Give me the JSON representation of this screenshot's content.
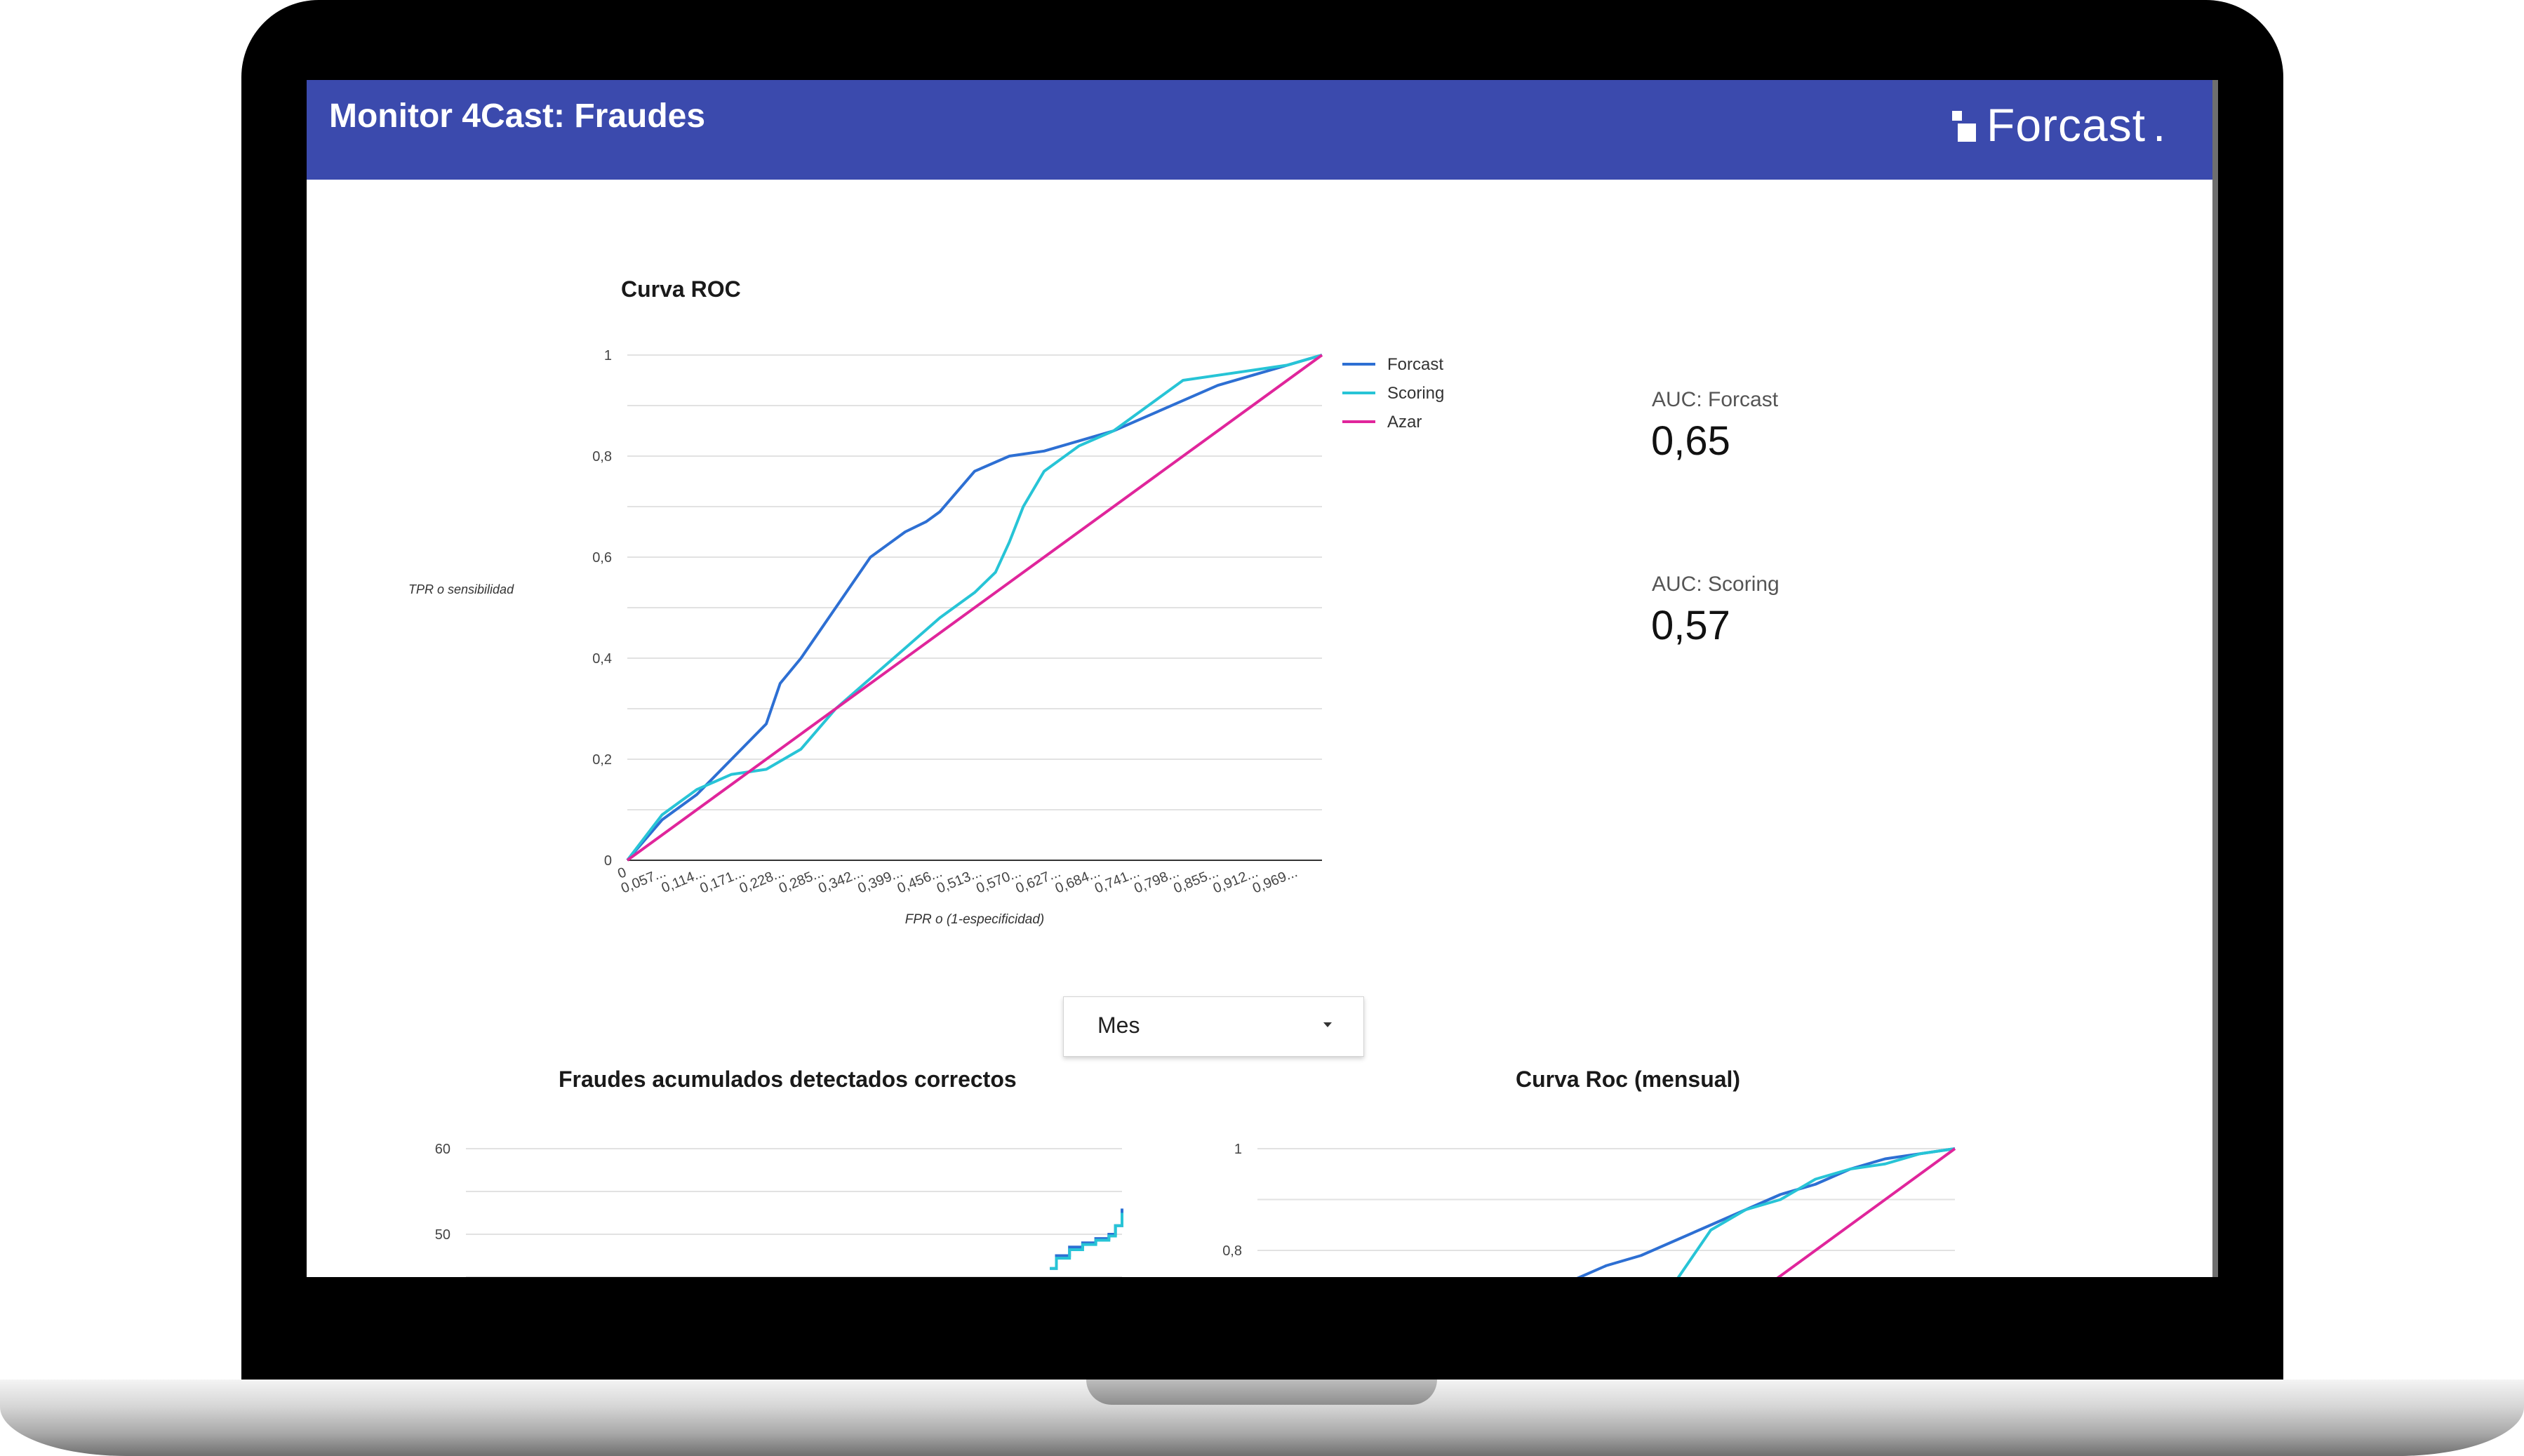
{
  "app": {
    "title": "Monitor 4Cast: Fraudes",
    "brand_name": "Forcast",
    "brand_dot": ".",
    "header_color": "#3b4aad"
  },
  "roc_main": {
    "title": "Curva ROC",
    "ylabel": "TPR o sensibilidad",
    "xlabel": "FPR o (1-especificidad)"
  },
  "kpis": [
    {
      "label": "AUC: Forcast",
      "value": "0,65"
    },
    {
      "label": "AUC: Scoring",
      "value": "0,57"
    }
  ],
  "filter": {
    "selected": "Mes",
    "icon": "caret-down-icon"
  },
  "cumulative": {
    "title": "Fraudes acumulados detectados correctos"
  },
  "roc_monthly": {
    "title": "Curva Roc (mensual)"
  },
  "chart_data": [
    {
      "type": "line",
      "title": "Curva ROC",
      "xlabel": "FPR o (1-especificidad)",
      "ylabel": "TPR o sensibilidad",
      "x_tick_labels": [
        "0",
        "0,057...",
        "0,114...",
        "0,171...",
        "0,228...",
        "0,285...",
        "0,342...",
        "0,399...",
        "0,456...",
        "0,513...",
        "0,570...",
        "0,627...",
        "0,684...",
        "0,741...",
        "0,798...",
        "0,855...",
        "0,912...",
        "0,969..."
      ],
      "y_ticks": [
        "0",
        "0,2",
        "0,4",
        "0,6",
        "0,8",
        "1"
      ],
      "ylim": [
        0,
        1
      ],
      "xlim": [
        0,
        1
      ],
      "legend": "right",
      "grid": true,
      "series": [
        {
          "name": "Forcast",
          "color": "#2d6fd3",
          "x": [
            0,
            0.05,
            0.1,
            0.15,
            0.2,
            0.22,
            0.25,
            0.3,
            0.35,
            0.4,
            0.43,
            0.45,
            0.5,
            0.55,
            0.6,
            0.65,
            0.7,
            0.75,
            0.8,
            0.85,
            0.9,
            0.95,
            1.0
          ],
          "y": [
            0,
            0.08,
            0.13,
            0.2,
            0.27,
            0.35,
            0.4,
            0.5,
            0.6,
            0.65,
            0.67,
            0.69,
            0.77,
            0.8,
            0.81,
            0.83,
            0.85,
            0.88,
            0.91,
            0.94,
            0.96,
            0.98,
            1.0
          ]
        },
        {
          "name": "Scoring",
          "color": "#27c4d6",
          "x": [
            0,
            0.05,
            0.1,
            0.15,
            0.2,
            0.25,
            0.3,
            0.35,
            0.4,
            0.45,
            0.5,
            0.53,
            0.55,
            0.57,
            0.6,
            0.65,
            0.7,
            0.75,
            0.8,
            0.85,
            0.9,
            0.95,
            1.0
          ],
          "y": [
            0,
            0.09,
            0.14,
            0.17,
            0.18,
            0.22,
            0.3,
            0.36,
            0.42,
            0.48,
            0.53,
            0.57,
            0.63,
            0.7,
            0.77,
            0.82,
            0.85,
            0.9,
            0.95,
            0.96,
            0.97,
            0.98,
            1.0
          ]
        },
        {
          "name": "Azar",
          "color": "#e0259b",
          "x": [
            0,
            1
          ],
          "y": [
            0,
            1
          ]
        }
      ]
    },
    {
      "type": "line",
      "title": "Fraudes acumulados detectados correctos",
      "y_ticks": [
        "50",
        "60"
      ],
      "grid": true,
      "series": [
        {
          "name": "",
          "color": "#2d6fd3",
          "x": [
            0.89,
            0.9,
            0.92,
            0.94,
            0.96,
            0.98,
            0.99,
            1.0
          ],
          "y": [
            46,
            47.5,
            48.5,
            49,
            49.5,
            50,
            51,
            53
          ]
        },
        {
          "name": "",
          "color": "#27c4d6",
          "x": [
            0.89,
            0.9,
            0.92,
            0.94,
            0.96,
            0.98,
            0.99,
            1.0
          ],
          "y": [
            46,
            47.2,
            48.2,
            48.8,
            49.3,
            49.8,
            51,
            52.5
          ]
        }
      ]
    },
    {
      "type": "line",
      "title": "Curva Roc (mensual)",
      "y_ticks": [
        "0,8",
        "1"
      ],
      "grid": true,
      "series": [
        {
          "name": "Forcast",
          "color": "#2d6fd3",
          "x": [
            0.45,
            0.5,
            0.55,
            0.6,
            0.65,
            0.7,
            0.75,
            0.8,
            0.85,
            0.9,
            0.95,
            1.0
          ],
          "y": [
            0.74,
            0.77,
            0.79,
            0.82,
            0.85,
            0.88,
            0.91,
            0.93,
            0.96,
            0.98,
            0.99,
            1.0
          ]
        },
        {
          "name": "Scoring",
          "color": "#27c4d6",
          "x": [
            0.6,
            0.63,
            0.65,
            0.7,
            0.75,
            0.8,
            0.85,
            0.9,
            0.95,
            1.0
          ],
          "y": [
            0.74,
            0.8,
            0.84,
            0.88,
            0.9,
            0.94,
            0.96,
            0.97,
            0.99,
            1.0
          ]
        },
        {
          "name": "Azar",
          "color": "#e0259b",
          "x": [
            0.7,
            1.0
          ],
          "y": [
            0.7,
            1.0
          ]
        }
      ]
    }
  ]
}
